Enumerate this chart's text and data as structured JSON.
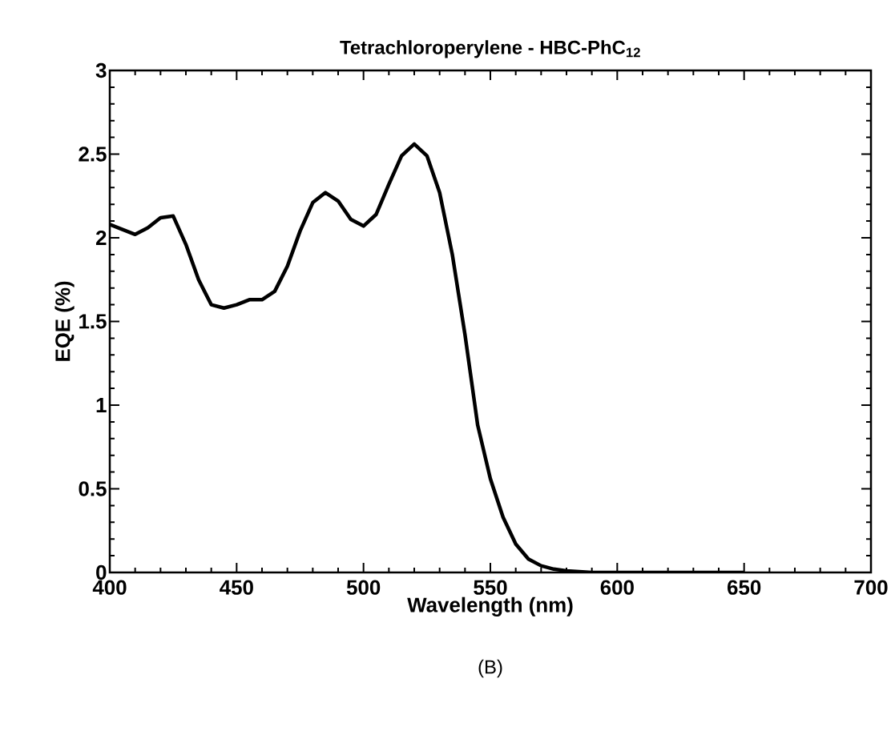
{
  "chart_data": {
    "type": "line",
    "title": "Tetrachloroperylene - HBC-PhC$_{12}$",
    "xlabel": "Wavelength (nm)",
    "ylabel": "EQE (%)",
    "annotations": [
      "(B)"
    ],
    "x": [
      400,
      405,
      410,
      415,
      420,
      425,
      430,
      435,
      440,
      445,
      450,
      455,
      460,
      465,
      470,
      475,
      480,
      485,
      490,
      495,
      500,
      505,
      510,
      515,
      520,
      525,
      530,
      535,
      540,
      545,
      550,
      555,
      560,
      565,
      570,
      575,
      580,
      590,
      600,
      620,
      650
    ],
    "series": [
      {
        "color": "#000000",
        "values": [
          2.08,
          2.05,
          2.02,
          2.06,
          2.12,
          2.13,
          1.96,
          1.75,
          1.6,
          1.58,
          1.6,
          1.63,
          1.63,
          1.68,
          1.83,
          2.04,
          2.21,
          2.27,
          2.22,
          2.11,
          2.07,
          2.14,
          2.32,
          2.49,
          2.56,
          2.49,
          2.27,
          1.9,
          1.42,
          0.88,
          0.56,
          0.33,
          0.17,
          0.08,
          0.04,
          0.02,
          0.01,
          0.0,
          0.0,
          0.0,
          0.0
        ]
      }
    ],
    "xlim": [
      400,
      700
    ],
    "ylim": [
      0,
      3
    ],
    "xticks": [
      400,
      450,
      500,
      550,
      600,
      650,
      700
    ],
    "yticks": [
      0,
      0.5,
      1,
      1.5,
      2,
      2.5,
      3
    ],
    "grid": false,
    "marker": "none",
    "line_style": "solid"
  }
}
